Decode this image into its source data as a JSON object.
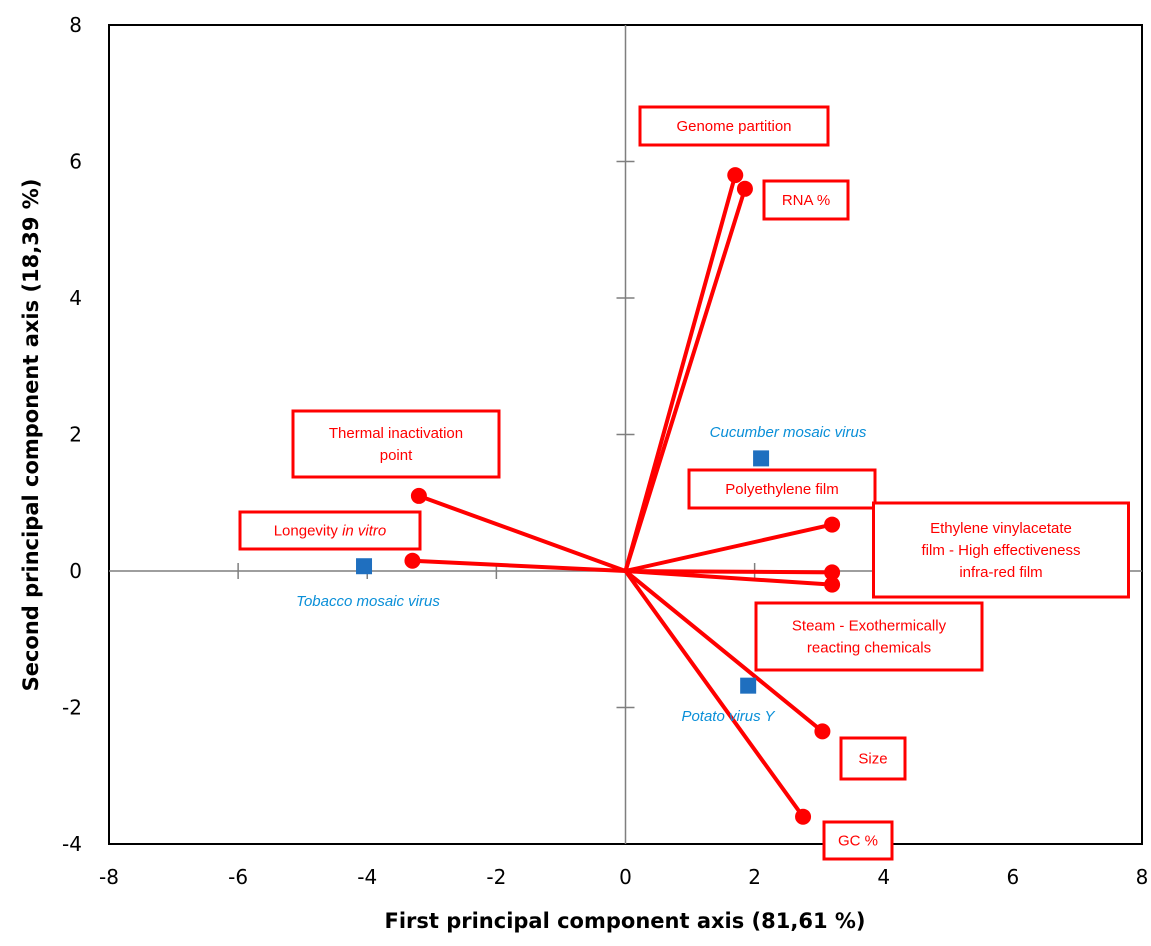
{
  "chart_data": {
    "type": "scatter",
    "title": "",
    "xlabel": "First principal component axis  (81,61 %)",
    "ylabel": "Second principal component axis  (18,39 %)",
    "xlim": [
      -8,
      8
    ],
    "ylim": [
      -4,
      8
    ],
    "xticks": [
      -8,
      -6,
      -4,
      -2,
      0,
      2,
      4,
      6,
      8
    ],
    "yticks": [
      -4,
      -2,
      0,
      2,
      4,
      6,
      8
    ],
    "grid": false,
    "legend": "none",
    "colors": {
      "variables": "#ff0000",
      "observations": "#1f6fbf",
      "observation_labels": "#0a8fd8"
    },
    "variables": [
      {
        "name": "Genome partition",
        "x": 1.7,
        "y": 5.8,
        "label": [
          "Genome  partition"
        ]
      },
      {
        "name": "RNA %",
        "x": 1.85,
        "y": 5.6,
        "label": [
          "RNA  %"
        ]
      },
      {
        "name": "Thermal inactivation point",
        "x": -3.2,
        "y": 1.1,
        "label": [
          "Thermal  inactivation",
          "point"
        ]
      },
      {
        "name": "Longevity in vitro",
        "x": -3.3,
        "y": 0.15,
        "label": [
          "Longevity  in vitro"
        ]
      },
      {
        "name": "Polyethylene film",
        "x": 3.2,
        "y": 0.68,
        "label": [
          "Polyethylene  film"
        ]
      },
      {
        "name": "Ethylene vinylacetate film - High effectiveness infra-red film",
        "x": 3.2,
        "y": -0.02,
        "label": [
          "Ethylene  vinylacetate",
          "film  - High  effectiveness",
          "infra-red  film"
        ]
      },
      {
        "name": "Steam - Exothermically reacting chemicals",
        "x": 3.2,
        "y": -0.2,
        "label": [
          "Steam  - Exothermically",
          "reacting  chemicals"
        ]
      },
      {
        "name": "Size",
        "x": 3.05,
        "y": -2.35,
        "label": [
          "Size"
        ]
      },
      {
        "name": "GC %",
        "x": 2.75,
        "y": -3.6,
        "label": [
          "GC  %"
        ]
      }
    ],
    "observations": [
      {
        "name": "Cucumber mosaic virus",
        "x": 2.1,
        "y": 1.65,
        "label": "Cucumber  mosaic  virus"
      },
      {
        "name": "Tobacco mosaic virus",
        "x": -4.05,
        "y": 0.07,
        "label": "Tobacco  mosaic  virus"
      },
      {
        "name": "Potato virus Y",
        "x": 1.9,
        "y": -1.68,
        "label": "Potato  virus  Y"
      }
    ]
  }
}
